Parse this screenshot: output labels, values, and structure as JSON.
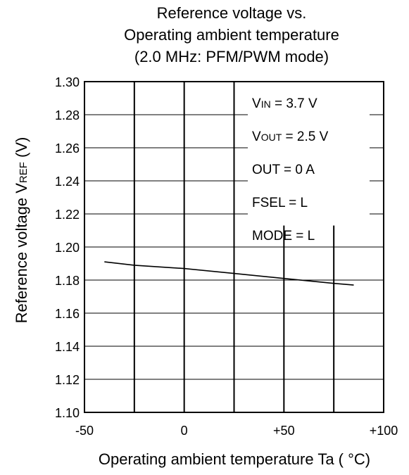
{
  "chart_data": {
    "type": "line",
    "title_lines": [
      "Reference voltage vs.",
      "Operating ambient temperature",
      "(2.0 MHz: PFM/PWM mode)"
    ],
    "xlabel": "Operating ambient temperature Ta ( °C)",
    "ylabel": {
      "main": "Reference voltage V",
      "sub": "REF",
      "unit": " (V)"
    },
    "xlim": [
      -50,
      100
    ],
    "ylim": [
      1.1,
      1.3
    ],
    "x_tick_values": [
      -50,
      0,
      50,
      100
    ],
    "x_tick_labels": [
      "-50",
      "0",
      "+50",
      "+100"
    ],
    "x_gridlines": [
      -25,
      0,
      25,
      50,
      75
    ],
    "y_tick_values": [
      1.1,
      1.12,
      1.14,
      1.16,
      1.18,
      1.2,
      1.22,
      1.24,
      1.26,
      1.28,
      1.3
    ],
    "y_tick_labels": [
      "1.10",
      "1.12",
      "1.14",
      "1.16",
      "1.18",
      "1.20",
      "1.22",
      "1.24",
      "1.26",
      "1.28",
      "1.30"
    ],
    "grid": true,
    "legend_position": "top-right",
    "conditions": [
      {
        "main": "V",
        "sub": "IN",
        "rest": " = 3.7 V"
      },
      {
        "main": "V",
        "sub": "OUT",
        "rest": " = 2.5 V"
      },
      {
        "main": "OUT = 0 A",
        "sub": "",
        "rest": ""
      },
      {
        "main": "FSEL = L",
        "sub": "",
        "rest": ""
      },
      {
        "main": "MODE = L",
        "sub": "",
        "rest": ""
      }
    ],
    "series": [
      {
        "x": [
          -40,
          -25,
          0,
          25,
          50,
          75,
          85
        ],
        "y": [
          1.191,
          1.189,
          1.187,
          1.184,
          1.181,
          1.178,
          1.177
        ]
      }
    ],
    "colors": {
      "axis": "#000000",
      "grid": "#000000",
      "line": "#000000",
      "background": "#ffffff"
    }
  }
}
